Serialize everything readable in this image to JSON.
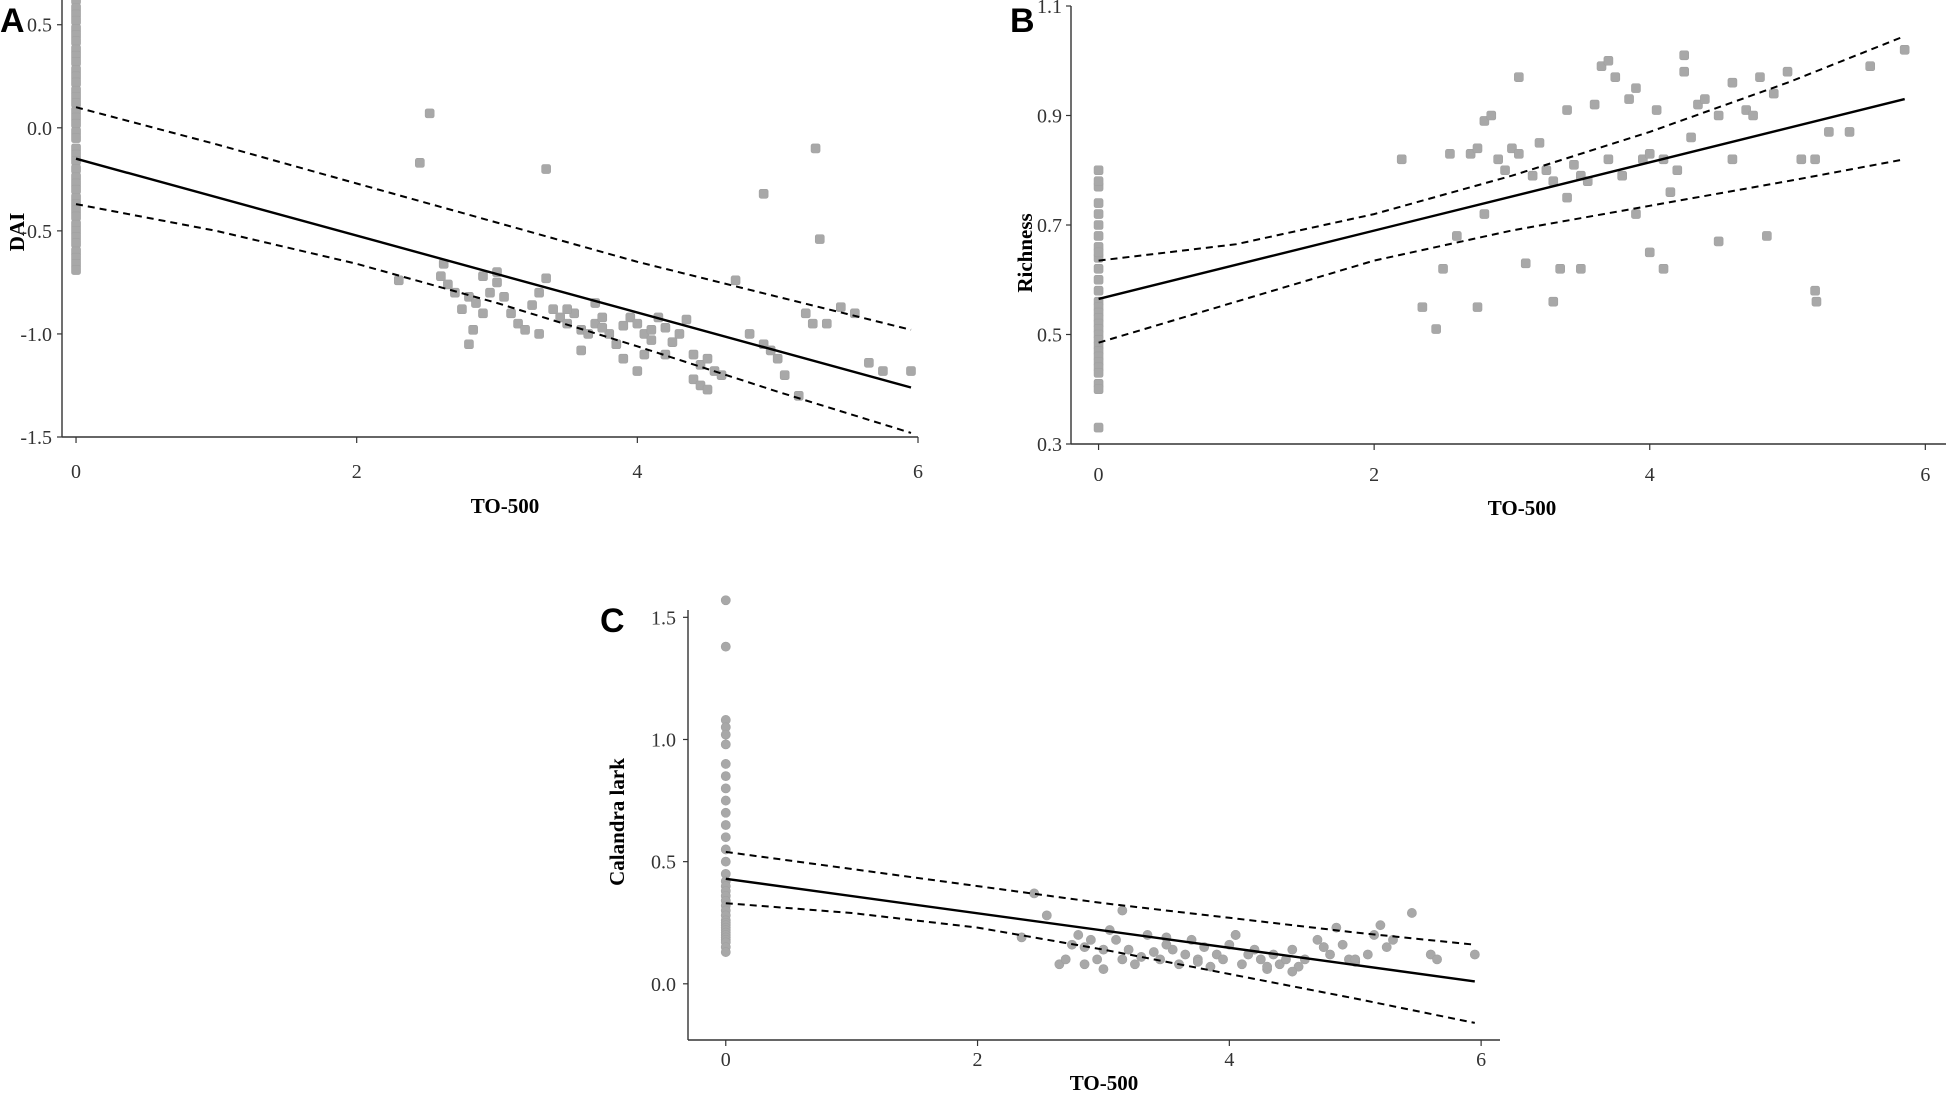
{
  "chart_data": [
    {
      "type": "scatter",
      "panel": "A",
      "xlabel": "TO-500",
      "ylabel": "DAI",
      "xlim": [
        -0.1,
        6
      ],
      "ylim": [
        -1.5,
        0.62
      ],
      "xticks": [
        0,
        2,
        4,
        6
      ],
      "yticks": [
        0.5,
        0.0,
        -0.5,
        -1.0,
        -1.5
      ],
      "ytick_labels": [
        "0.5",
        "0.0",
        "-0.5",
        "-1.0",
        "-1.5"
      ],
      "fit_line": {
        "x": [
          0,
          5.95
        ],
        "y": [
          -0.15,
          -1.26
        ]
      },
      "ci_upper": {
        "x": [
          0,
          1,
          2,
          3,
          4,
          5,
          5.95
        ],
        "y": [
          0.1,
          -0.08,
          -0.27,
          -0.46,
          -0.65,
          -0.82,
          -0.98
        ]
      },
      "ci_lower": {
        "x": [
          0,
          1,
          2,
          3,
          4,
          5,
          5.95
        ],
        "y": [
          -0.37,
          -0.5,
          -0.66,
          -0.85,
          -1.06,
          -1.28,
          -1.48
        ]
      },
      "points": {
        "x": [
          0,
          0,
          0,
          0,
          0,
          0,
          0,
          0,
          0,
          0,
          0,
          0,
          0,
          0,
          0,
          0,
          0,
          0,
          0,
          0,
          0,
          0,
          0,
          0,
          0,
          0,
          0,
          0,
          0,
          0,
          0,
          0,
          0,
          0,
          0,
          0,
          0,
          0,
          0,
          0,
          2.3,
          2.45,
          2.52,
          2.62,
          2.7,
          2.75,
          2.8,
          2.85,
          2.9,
          2.95,
          3.0,
          3.05,
          3.1,
          3.15,
          3.2,
          3.25,
          3.3,
          3.35,
          3.4,
          3.45,
          3.5,
          3.55,
          3.6,
          3.65,
          3.7,
          3.75,
          3.8,
          3.85,
          3.9,
          3.95,
          4.0,
          4.05,
          4.1,
          4.15,
          4.2,
          4.25,
          4.3,
          4.35,
          4.4,
          4.45,
          4.5,
          4.55,
          4.6,
          3.3,
          3.6,
          3.9,
          4.0,
          4.2,
          4.4,
          2.8,
          2.83,
          2.6,
          2.65,
          2.9,
          3.0,
          3.35,
          3.5,
          3.7,
          3.75,
          3.85,
          4.05,
          4.1,
          4.45,
          4.5,
          4.7,
          4.8,
          4.9,
          4.95,
          5.0,
          5.05,
          5.15,
          5.2,
          5.25,
          5.35,
          5.45,
          5.55,
          5.65,
          5.75,
          5.95,
          4.9,
          5.27,
          5.3
        ],
        "y": [
          0.62,
          0.58,
          0.55,
          0.52,
          0.48,
          0.45,
          0.42,
          0.38,
          0.35,
          0.32,
          0.28,
          0.25,
          0.22,
          0.18,
          0.15,
          0.12,
          0.08,
          0.05,
          0.02,
          -0.02,
          -0.05,
          -0.1,
          -0.13,
          -0.16,
          -0.2,
          -0.24,
          -0.27,
          -0.3,
          -0.34,
          -0.37,
          -0.4,
          -0.43,
          -0.47,
          -0.5,
          -0.53,
          -0.56,
          -0.6,
          -0.63,
          -0.66,
          -0.69,
          -0.74,
          -0.17,
          0.07,
          -0.66,
          -0.8,
          -0.88,
          -0.82,
          -0.85,
          -0.9,
          -0.8,
          -0.75,
          -0.82,
          -0.9,
          -0.95,
          -0.98,
          -0.86,
          -0.8,
          -0.73,
          -0.88,
          -0.92,
          -0.95,
          -0.9,
          -0.98,
          -1.0,
          -0.95,
          -0.92,
          -1.0,
          -1.05,
          -0.96,
          -0.92,
          -0.95,
          -1.0,
          -0.98,
          -0.92,
          -0.97,
          -1.04,
          -1.0,
          -0.93,
          -1.1,
          -1.15,
          -1.12,
          -1.18,
          -1.2,
          -1.0,
          -1.08,
          -1.12,
          -1.18,
          -1.1,
          -1.22,
          -1.05,
          -0.98,
          -0.72,
          -0.76,
          -0.72,
          -0.7,
          -0.2,
          -0.88,
          -0.85,
          -0.97,
          -1.05,
          -1.1,
          -1.03,
          -1.25,
          -1.27,
          -0.74,
          -1.0,
          -1.05,
          -1.08,
          -1.12,
          -1.2,
          -1.3,
          -0.9,
          -0.95,
          -0.95,
          -0.87,
          -0.9,
          -1.14,
          -1.18,
          -1.18,
          -0.32,
          -0.1,
          -0.54
        ]
      }
    },
    {
      "type": "scatter",
      "panel": "B",
      "xlabel": "TO-500",
      "ylabel": "Richness",
      "xlim": [
        -0.2,
        6.15
      ],
      "ylim": [
        0.3,
        1.1
      ],
      "xticks": [
        0,
        2,
        4,
        6
      ],
      "yticks": [
        1.1,
        0.9,
        0.7,
        0.5,
        0.3
      ],
      "ytick_labels": [
        "1.1",
        "0.9",
        "0.7",
        "0.5",
        "0.3"
      ],
      "fit_line": {
        "x": [
          0,
          5.85
        ],
        "y": [
          0.565,
          0.93
        ]
      },
      "ci_upper": {
        "x": [
          0,
          1,
          2,
          3,
          4,
          5,
          5.85
        ],
        "y": [
          0.635,
          0.665,
          0.72,
          0.79,
          0.87,
          0.96,
          1.045
        ]
      },
      "ci_lower": {
        "x": [
          0,
          1,
          2,
          3,
          4,
          5,
          5.85
        ],
        "y": [
          0.485,
          0.56,
          0.635,
          0.69,
          0.735,
          0.78,
          0.82
        ]
      },
      "points": {
        "x": [
          0,
          0,
          0,
          0,
          0,
          0,
          0,
          0,
          0,
          0,
          0,
          0,
          0,
          0,
          0,
          0,
          0,
          0,
          0,
          0,
          0,
          0,
          0,
          0,
          0,
          0,
          0,
          0,
          0,
          0,
          2.2,
          2.35,
          2.45,
          2.55,
          2.6,
          2.7,
          2.75,
          2.8,
          2.85,
          2.9,
          2.95,
          3.0,
          3.05,
          3.1,
          3.15,
          3.2,
          3.25,
          3.3,
          3.35,
          3.4,
          3.45,
          3.5,
          3.55,
          3.6,
          3.65,
          3.7,
          3.75,
          3.8,
          3.85,
          3.9,
          3.95,
          4.0,
          4.05,
          4.1,
          4.15,
          4.2,
          4.25,
          4.3,
          4.35,
          4.4,
          4.5,
          4.6,
          4.7,
          4.8,
          4.9,
          5.0,
          5.1,
          5.2,
          2.75,
          3.05,
          3.4,
          3.7,
          4.25,
          4.75,
          5.6,
          5.85,
          2.5,
          2.8,
          3.3,
          3.5,
          4.0,
          4.1,
          4.5,
          4.85,
          5.2,
          5.21,
          3.9,
          4.6,
          5.3,
          5.45
        ],
        "y": [
          0.8,
          0.77,
          0.74,
          0.72,
          0.7,
          0.68,
          0.66,
          0.64,
          0.62,
          0.6,
          0.58,
          0.56,
          0.55,
          0.54,
          0.53,
          0.52,
          0.51,
          0.5,
          0.49,
          0.48,
          0.47,
          0.46,
          0.45,
          0.44,
          0.43,
          0.41,
          0.4,
          0.78,
          0.65,
          0.33,
          0.82,
          0.55,
          0.51,
          0.83,
          0.68,
          0.83,
          0.84,
          0.89,
          0.9,
          0.82,
          0.8,
          0.84,
          0.83,
          0.63,
          0.79,
          0.85,
          0.8,
          0.78,
          0.62,
          0.91,
          0.81,
          0.79,
          0.78,
          0.92,
          0.99,
          0.82,
          0.97,
          0.79,
          0.93,
          0.95,
          0.82,
          0.83,
          0.91,
          0.82,
          0.76,
          0.8,
          1.01,
          0.86,
          0.92,
          0.93,
          0.9,
          0.96,
          0.91,
          0.97,
          0.94,
          0.98,
          0.82,
          0.82,
          0.55,
          0.97,
          0.75,
          1.0,
          0.98,
          0.9,
          0.99,
          1.02,
          0.62,
          0.72,
          0.56,
          0.62,
          0.65,
          0.62,
          0.67,
          0.68,
          0.58,
          0.56,
          0.72,
          0.82,
          0.87,
          0.87
        ]
      }
    },
    {
      "type": "scatter",
      "panel": "C",
      "xlabel": "TO-500",
      "ylabel": "Calandra lark",
      "xlim": [
        -0.3,
        6.15
      ],
      "ylim": [
        -0.23,
        1.53
      ],
      "xticks": [
        0,
        2,
        4,
        6
      ],
      "yticks": [
        1.5,
        1.0,
        0.5,
        0.0
      ],
      "ytick_labels": [
        "1.5",
        "1.0",
        "0.5",
        "0.0"
      ],
      "fit_line": {
        "x": [
          0,
          5.95
        ],
        "y": [
          0.43,
          0.01
        ]
      },
      "ci_upper": {
        "x": [
          0,
          1,
          2,
          3,
          4,
          5,
          5.95
        ],
        "y": [
          0.54,
          0.47,
          0.4,
          0.33,
          0.27,
          0.21,
          0.16
        ]
      },
      "ci_lower": {
        "x": [
          0,
          1,
          2,
          3,
          4,
          5,
          5.95
        ],
        "y": [
          0.33,
          0.29,
          0.23,
          0.14,
          0.04,
          -0.06,
          -0.16
        ]
      },
      "points": {
        "x": [
          0,
          0,
          0,
          0,
          0,
          0,
          0,
          0,
          0,
          0,
          0,
          0,
          0,
          0,
          0,
          0,
          0,
          0,
          0,
          0,
          0,
          0,
          0,
          0,
          0,
          0,
          0,
          0,
          0,
          0,
          0,
          0,
          0,
          0,
          0,
          0,
          2.45,
          2.55,
          2.65,
          2.7,
          2.75,
          2.8,
          2.85,
          2.9,
          2.95,
          3.0,
          3.05,
          3.1,
          3.15,
          3.2,
          3.25,
          3.3,
          3.35,
          3.4,
          3.45,
          3.5,
          3.55,
          3.6,
          3.65,
          3.7,
          3.75,
          3.8,
          3.85,
          3.9,
          3.95,
          4.0,
          4.05,
          4.1,
          4.15,
          4.2,
          4.25,
          4.3,
          4.35,
          4.4,
          4.45,
          4.5,
          4.55,
          4.6,
          4.7,
          4.75,
          4.8,
          4.85,
          4.9,
          4.95,
          5.0,
          5.1,
          5.15,
          5.2,
          5.25,
          5.3,
          5.45,
          5.6,
          5.65,
          5.95,
          2.35,
          2.85,
          3.0,
          3.15,
          3.5,
          3.75,
          4.05,
          4.3,
          4.5,
          4.75,
          5.0
        ],
        "y": [
          1.57,
          1.38,
          1.08,
          1.05,
          1.02,
          0.98,
          0.9,
          0.85,
          0.8,
          0.75,
          0.7,
          0.65,
          0.6,
          0.55,
          0.5,
          0.45,
          0.42,
          0.4,
          0.38,
          0.36,
          0.34,
          0.32,
          0.3,
          0.28,
          0.26,
          0.25,
          0.24,
          0.23,
          0.22,
          0.21,
          0.2,
          0.19,
          0.18,
          0.17,
          0.15,
          0.13,
          0.37,
          0.28,
          0.08,
          0.1,
          0.16,
          0.2,
          0.15,
          0.18,
          0.1,
          0.14,
          0.22,
          0.18,
          0.1,
          0.14,
          0.08,
          0.11,
          0.2,
          0.13,
          0.1,
          0.19,
          0.14,
          0.08,
          0.12,
          0.18,
          0.1,
          0.15,
          0.07,
          0.12,
          0.1,
          0.16,
          0.2,
          0.08,
          0.12,
          0.14,
          0.1,
          0.06,
          0.12,
          0.08,
          0.1,
          0.14,
          0.07,
          0.1,
          0.18,
          0.15,
          0.12,
          0.23,
          0.16,
          0.1,
          0.09,
          0.12,
          0.2,
          0.24,
          0.15,
          0.18,
          0.29,
          0.12,
          0.1,
          0.12,
          0.19,
          0.08,
          0.06,
          0.3,
          0.16,
          0.09,
          0.2,
          0.07,
          0.05,
          0.15,
          0.1
        ]
      }
    }
  ]
}
